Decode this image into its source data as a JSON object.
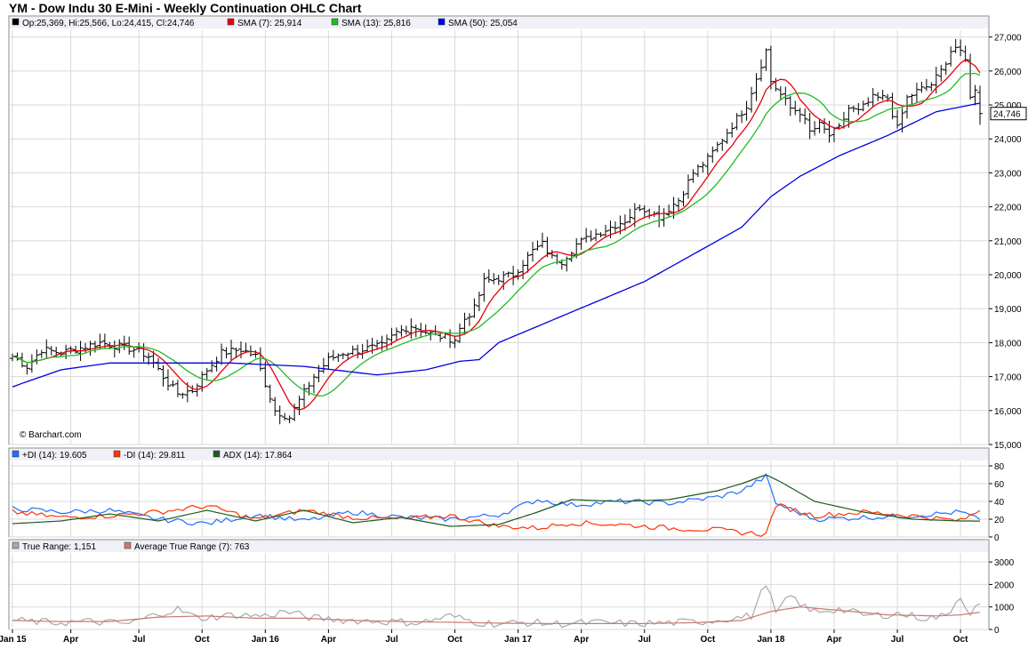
{
  "title": "YM - Dow Indu 30 E-Mini - Weekly Continuation OHLC Chart",
  "watermark": "© Barchart.com",
  "colors": {
    "price": "#000000",
    "sma7": "#e8000b",
    "sma13": "#22bb22",
    "sma50": "#0000e0",
    "pdi": "#1f6fff",
    "mdi": "#ff3300",
    "adx": "#1f5a1f",
    "tr": "#a8a8a8",
    "atr": "#c87a72",
    "grid": "#d9d9d9"
  },
  "legends": {
    "price": [
      {
        "color": "#000000",
        "text": "Op:25,369, Hi:25,566, Lo:24,415, Cl:24,746"
      },
      {
        "color": "#e8000b",
        "text": "SMA (7): 25,914"
      },
      {
        "color": "#22bb22",
        "text": "SMA (13): 25,816"
      },
      {
        "color": "#0000e0",
        "text": "SMA (50): 25,054"
      }
    ],
    "dmi": [
      {
        "color": "#1f6fff",
        "text": "+DI (14): 19.605"
      },
      {
        "color": "#ff3300",
        "text": "-DI (14): 29.811"
      },
      {
        "color": "#1f5a1f",
        "text": "ADX (14): 17.864"
      }
    ],
    "tr": [
      {
        "color": "#a8a8a8",
        "text": "True Range: 1,151"
      },
      {
        "color": "#c87a72",
        "text": "Average True Range (7): 763"
      }
    ]
  },
  "last_price_label": "24,746",
  "chart_data": [
    {
      "type": "ohlc",
      "name": "price",
      "ylim": [
        15000,
        27200
      ],
      "yticks": [
        "15,000",
        "16,000",
        "17,000",
        "18,000",
        "19,000",
        "20,000",
        "21,000",
        "22,000",
        "23,000",
        "24,000",
        "25,000",
        "26,000",
        "27,000"
      ],
      "ytick_values": [
        15000,
        16000,
        17000,
        18000,
        19000,
        20000,
        21000,
        22000,
        23000,
        24000,
        25000,
        26000,
        27000
      ],
      "x_axis": {
        "weeks": 200,
        "labels": [
          "Jan 15",
          "Apr",
          "Jul",
          "Oct",
          "Jan 16",
          "Apr",
          "Jul",
          "Oct",
          "Jan 17",
          "Apr",
          "Jul",
          "Oct",
          "Jan 18",
          "Apr",
          "Jul",
          "Oct"
        ],
        "label_week": [
          0,
          12,
          26,
          39,
          52,
          65,
          78,
          91,
          104,
          117,
          130,
          143,
          156,
          169,
          182,
          195
        ]
      },
      "close_anchors": [
        [
          0,
          17600
        ],
        [
          3,
          17300
        ],
        [
          6,
          17800
        ],
        [
          10,
          17700
        ],
        [
          18,
          18000
        ],
        [
          25,
          17800
        ],
        [
          28,
          17600
        ],
        [
          32,
          16800
        ],
        [
          34,
          16500
        ],
        [
          37,
          16600
        ],
        [
          40,
          17200
        ],
        [
          43,
          17700
        ],
        [
          47,
          17800
        ],
        [
          50,
          17600
        ],
        [
          52,
          16800
        ],
        [
          54,
          16000
        ],
        [
          57,
          15800
        ],
        [
          59,
          16300
        ],
        [
          62,
          17000
        ],
        [
          65,
          17500
        ],
        [
          68,
          17700
        ],
        [
          72,
          17800
        ],
        [
          76,
          17900
        ],
        [
          79,
          18300
        ],
        [
          82,
          18500
        ],
        [
          87,
          18200
        ],
        [
          91,
          18100
        ],
        [
          93,
          18700
        ],
        [
          95,
          19000
        ],
        [
          97,
          19800
        ],
        [
          100,
          19900
        ],
        [
          103,
          20000
        ],
        [
          107,
          20700
        ],
        [
          109,
          20900
        ],
        [
          111,
          20500
        ],
        [
          113,
          20400
        ],
        [
          116,
          20900
        ],
        [
          120,
          21200
        ],
        [
          126,
          21600
        ],
        [
          129,
          22000
        ],
        [
          133,
          21700
        ],
        [
          137,
          22200
        ],
        [
          140,
          23000
        ],
        [
          143,
          23400
        ],
        [
          146,
          24000
        ],
        [
          148,
          24400
        ],
        [
          151,
          25000
        ],
        [
          153,
          25800
        ],
        [
          155,
          26600
        ],
        [
          156,
          25700
        ],
        [
          158,
          25300
        ],
        [
          160,
          24900
        ],
        [
          162,
          24800
        ],
        [
          164,
          24200
        ],
        [
          166,
          24400
        ],
        [
          168,
          24100
        ],
        [
          170,
          24300
        ],
        [
          172,
          24900
        ],
        [
          174,
          24800
        ],
        [
          177,
          25200
        ],
        [
          180,
          25200
        ],
        [
          182,
          24300
        ],
        [
          184,
          25200
        ],
        [
          186,
          25400
        ],
        [
          189,
          25600
        ],
        [
          191,
          26000
        ],
        [
          193,
          26600
        ],
        [
          194,
          26700
        ],
        [
          196,
          26300
        ],
        [
          197,
          25300
        ],
        [
          198,
          25400
        ],
        [
          199,
          24746
        ]
      ],
      "sma50_anchors": [
        [
          0,
          16700
        ],
        [
          10,
          17200
        ],
        [
          20,
          17400
        ],
        [
          30,
          17400
        ],
        [
          45,
          17400
        ],
        [
          60,
          17300
        ],
        [
          75,
          17050
        ],
        [
          85,
          17200
        ],
        [
          92,
          17450
        ],
        [
          96,
          17500
        ],
        [
          100,
          18000
        ],
        [
          110,
          18600
        ],
        [
          120,
          19200
        ],
        [
          130,
          19800
        ],
        [
          140,
          20600
        ],
        [
          150,
          21400
        ],
        [
          156,
          22300
        ],
        [
          162,
          22900
        ],
        [
          170,
          23500
        ],
        [
          180,
          24100
        ],
        [
          190,
          24800
        ],
        [
          199,
          25054
        ]
      ],
      "last": {
        "open": 25369,
        "high": 25566,
        "low": 24415,
        "close": 24746
      },
      "sma7_last": 25914,
      "sma13_last": 25816,
      "sma50_last": 25054
    },
    {
      "type": "line",
      "name": "dmi",
      "ylim": [
        0,
        85
      ],
      "yticks": [
        "0",
        "20",
        "40",
        "60",
        "80"
      ],
      "ytick_values": [
        0,
        20,
        40,
        60,
        80
      ],
      "series": [
        {
          "name": "+DI (14)",
          "points": [
            [
              0,
              32
            ],
            [
              10,
              28
            ],
            [
              20,
              30
            ],
            [
              30,
              20
            ],
            [
              40,
              15
            ],
            [
              50,
              25
            ],
            [
              60,
              18
            ],
            [
              70,
              28
            ],
            [
              80,
              22
            ],
            [
              90,
              20
            ],
            [
              100,
              25
            ],
            [
              108,
              42
            ],
            [
              115,
              36
            ],
            [
              125,
              40
            ],
            [
              135,
              38
            ],
            [
              145,
              45
            ],
            [
              150,
              52
            ],
            [
              155,
              68
            ],
            [
              157,
              38
            ],
            [
              165,
              20
            ],
            [
              175,
              22
            ],
            [
              185,
              24
            ],
            [
              195,
              28
            ],
            [
              199,
              19.6
            ]
          ]
        },
        {
          "name": "-DI (14)",
          "points": [
            [
              0,
              28
            ],
            [
              10,
              22
            ],
            [
              20,
              24
            ],
            [
              30,
              28
            ],
            [
              40,
              35
            ],
            [
              50,
              20
            ],
            [
              60,
              30
            ],
            [
              70,
              22
            ],
            [
              80,
              20
            ],
            [
              90,
              24
            ],
            [
              100,
              12
            ],
            [
              108,
              10
            ],
            [
              115,
              16
            ],
            [
              125,
              14
            ],
            [
              135,
              10
            ],
            [
              145,
              8
            ],
            [
              150,
              5
            ],
            [
              155,
              3
            ],
            [
              157,
              36
            ],
            [
              165,
              24
            ],
            [
              175,
              28
            ],
            [
              185,
              24
            ],
            [
              195,
              18
            ],
            [
              199,
              29.8
            ]
          ]
        },
        {
          "name": "ADX (14)",
          "points": [
            [
              0,
              15
            ],
            [
              10,
              18
            ],
            [
              20,
              26
            ],
            [
              30,
              18
            ],
            [
              40,
              30
            ],
            [
              50,
              18
            ],
            [
              60,
              30
            ],
            [
              70,
              16
            ],
            [
              80,
              22
            ],
            [
              90,
              12
            ],
            [
              100,
              14
            ],
            [
              108,
              28
            ],
            [
              115,
              42
            ],
            [
              125,
              40
            ],
            [
              135,
              42
            ],
            [
              145,
              52
            ],
            [
              150,
              60
            ],
            [
              155,
              70
            ],
            [
              158,
              62
            ],
            [
              165,
              40
            ],
            [
              175,
              28
            ],
            [
              185,
              20
            ],
            [
              195,
              18
            ],
            [
              199,
              17.9
            ]
          ]
        }
      ]
    },
    {
      "type": "line",
      "name": "true_range",
      "ylim": [
        0,
        3400
      ],
      "yticks": [
        "0",
        "1000",
        "2000",
        "3000"
      ],
      "ytick_values": [
        0,
        1000,
        2000,
        3000
      ],
      "series": [
        {
          "name": "True Range",
          "points": [
            [
              0,
              400
            ],
            [
              8,
              300
            ],
            [
              16,
              350
            ],
            [
              24,
              250
            ],
            [
              30,
              700
            ],
            [
              34,
              900
            ],
            [
              38,
              500
            ],
            [
              46,
              650
            ],
            [
              52,
              600
            ],
            [
              56,
              800
            ],
            [
              62,
              500
            ],
            [
              70,
              400
            ],
            [
              78,
              350
            ],
            [
              84,
              300
            ],
            [
              90,
              600
            ],
            [
              96,
              300
            ],
            [
              100,
              250
            ],
            [
              106,
              300
            ],
            [
              112,
              250
            ],
            [
              120,
              300
            ],
            [
              128,
              250
            ],
            [
              136,
              300
            ],
            [
              142,
              350
            ],
            [
              148,
              500
            ],
            [
              152,
              600
            ],
            [
              155,
              2100
            ],
            [
              157,
              700
            ],
            [
              160,
              1500
            ],
            [
              164,
              800
            ],
            [
              170,
              900
            ],
            [
              176,
              600
            ],
            [
              182,
              700
            ],
            [
              188,
              500
            ],
            [
              192,
              600
            ],
            [
              195,
              1500
            ],
            [
              197,
              700
            ],
            [
              199,
              1151
            ]
          ]
        },
        {
          "name": "Average True Range (7)",
          "points": [
            [
              0,
              400
            ],
            [
              10,
              350
            ],
            [
              20,
              350
            ],
            [
              30,
              550
            ],
            [
              40,
              600
            ],
            [
              50,
              500
            ],
            [
              60,
              500
            ],
            [
              70,
              400
            ],
            [
              80,
              350
            ],
            [
              90,
              320
            ],
            [
              100,
              280
            ],
            [
              110,
              260
            ],
            [
              120,
              260
            ],
            [
              130,
              260
            ],
            [
              140,
              300
            ],
            [
              150,
              400
            ],
            [
              156,
              800
            ],
            [
              162,
              1000
            ],
            [
              170,
              850
            ],
            [
              180,
              650
            ],
            [
              190,
              600
            ],
            [
              195,
              650
            ],
            [
              199,
              763
            ]
          ]
        }
      ]
    }
  ]
}
